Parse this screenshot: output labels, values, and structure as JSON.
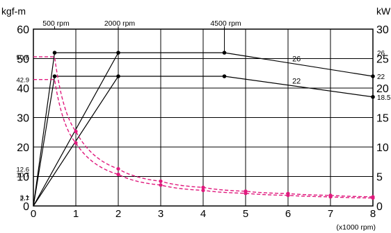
{
  "chart_data": {
    "type": "line",
    "left_unit": "kgf-m",
    "right_unit": "kW",
    "x_unit": "(x1000 rpm)",
    "x_ticks": [
      "0",
      "1",
      "2",
      "3",
      "4",
      "5",
      "6",
      "7",
      "8"
    ],
    "xlim": [
      0,
      8
    ],
    "left_ylim": [
      0,
      60
    ],
    "right_ylim": [
      0,
      30
    ],
    "left_ticks": [
      "0",
      "10",
      "20",
      "30",
      "40",
      "50",
      "60"
    ],
    "right_ticks": [
      "0",
      "5",
      "10",
      "15",
      "20",
      "25",
      "30"
    ],
    "top_labels": [
      {
        "text": "500 rpm",
        "x": 0.5
      },
      {
        "text": "2000 rpm",
        "x": 2
      },
      {
        "text": "4500 rpm",
        "x": 4.5
      }
    ],
    "left_value_labels": [
      {
        "text": "50.6",
        "value": 50.6
      },
      {
        "text": "42.9",
        "value": 42.9
      },
      {
        "text": "12.6",
        "value": 12.6
      },
      {
        "text": "10.7",
        "value": 10.7
      },
      {
        "text": "3.1",
        "value": 3.1
      },
      {
        "text": "2.7",
        "value": 2.7
      }
    ],
    "right_value_labels": [
      {
        "text": "26",
        "value": 26
      },
      {
        "text": "22",
        "value": 22
      },
      {
        "text": "18.5",
        "value": 18.5
      }
    ],
    "power_curves": [
      {
        "label": "26",
        "label_x": 6.2,
        "color": "#000000",
        "points": [
          [
            0,
            0
          ],
          [
            0.5,
            26
          ],
          [
            4.5,
            26
          ],
          [
            8,
            22
          ]
        ]
      },
      {
        "label": "22",
        "label_x": 6.2,
        "color": "#000000",
        "points": [
          [
            0,
            0
          ],
          [
            0.5,
            22
          ],
          [
            4.5,
            22
          ],
          [
            8,
            18.5
          ]
        ]
      }
    ],
    "power_ramps": [
      {
        "points": [
          [
            0,
            0
          ],
          [
            2,
            26
          ]
        ]
      },
      {
        "points": [
          [
            0,
            0
          ],
          [
            2,
            22
          ]
        ]
      }
    ],
    "torque_curves": [
      {
        "color": "#e0197d",
        "points": [
          [
            0,
            50.6
          ],
          [
            0.5,
            50.6
          ],
          [
            1,
            25.3
          ],
          [
            2,
            12.6
          ],
          [
            3,
            8.4
          ],
          [
            4,
            6.3
          ],
          [
            5,
            5.0
          ],
          [
            6,
            4.2
          ],
          [
            7,
            3.6
          ],
          [
            8,
            3.1
          ]
        ]
      },
      {
        "color": "#e0197d",
        "points": [
          [
            0,
            42.9
          ],
          [
            0.5,
            42.9
          ],
          [
            1,
            21.4
          ],
          [
            2,
            10.7
          ],
          [
            3,
            7.1
          ],
          [
            4,
            5.3
          ],
          [
            5,
            4.3
          ],
          [
            6,
            3.6
          ],
          [
            7,
            3.1
          ],
          [
            8,
            2.7
          ]
        ]
      }
    ]
  }
}
